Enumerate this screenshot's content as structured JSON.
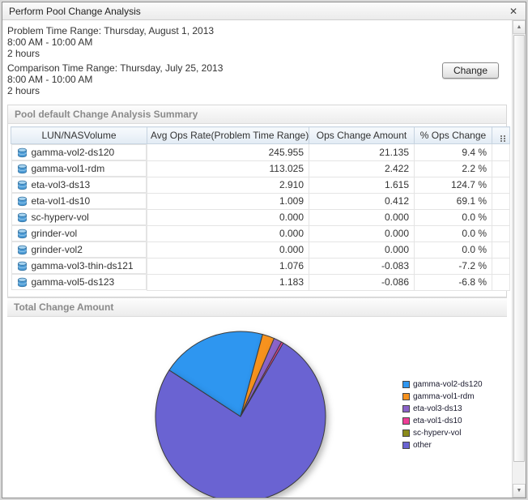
{
  "dialog": {
    "title": "Perform Pool Change Analysis"
  },
  "icons": {
    "close": "✕",
    "scroll_up": "▲",
    "scroll_down": "▼"
  },
  "ranges": {
    "problem": {
      "label": "Problem Time Range:",
      "date": "Thursday, August 1, 2013",
      "time": "8:00 AM - 10:00 AM",
      "duration": "2 hours"
    },
    "comparison": {
      "label": "Comparison Time Range:",
      "date": "Thursday, July 25, 2013",
      "time": "8:00 AM - 10:00 AM",
      "duration": "2 hours"
    }
  },
  "buttons": {
    "change": "Change"
  },
  "summary": {
    "title": "Pool default Change Analysis Summary",
    "columns": [
      "LUN/NASVolume",
      "Avg Ops Rate(Problem Time Range)",
      "Ops Change Amount",
      "% Ops Change"
    ],
    "rows": [
      {
        "name": "gamma-vol2-ds120",
        "avg_ops_rate": "245.955",
        "ops_change_amount": "21.135",
        "pct_ops_change": "9.4 %"
      },
      {
        "name": "gamma-vol1-rdm",
        "avg_ops_rate": "113.025",
        "ops_change_amount": "2.422",
        "pct_ops_change": "2.2 %"
      },
      {
        "name": "eta-vol3-ds13",
        "avg_ops_rate": "2.910",
        "ops_change_amount": "1.615",
        "pct_ops_change": "124.7 %"
      },
      {
        "name": "eta-vol1-ds10",
        "avg_ops_rate": "1.009",
        "ops_change_amount": "0.412",
        "pct_ops_change": "69.1 %"
      },
      {
        "name": "sc-hyperv-vol",
        "avg_ops_rate": "0.000",
        "ops_change_amount": "0.000",
        "pct_ops_change": "0.0 %"
      },
      {
        "name": "grinder-vol",
        "avg_ops_rate": "0.000",
        "ops_change_amount": "0.000",
        "pct_ops_change": "0.0 %"
      },
      {
        "name": "grinder-vol2",
        "avg_ops_rate": "0.000",
        "ops_change_amount": "0.000",
        "pct_ops_change": "0.0 %"
      },
      {
        "name": "gamma-vol3-thin-ds121",
        "avg_ops_rate": "1.076",
        "ops_change_amount": "-0.083",
        "pct_ops_change": "-7.2 %"
      },
      {
        "name": "gamma-vol5-ds123",
        "avg_ops_rate": "1.183",
        "ops_change_amount": "-0.086",
        "pct_ops_change": "-6.8 %"
      }
    ]
  },
  "chart_section": {
    "title": "Total Change Amount"
  },
  "chart_data": {
    "type": "pie",
    "title": "Total Change Amount",
    "legend_position": "right",
    "start_angle_deg": -57,
    "slices": [
      {
        "label": "gamma-vol2-ds120",
        "value": 21.135,
        "color": "#2e96f0"
      },
      {
        "label": "gamma-vol1-rdm",
        "value": 2.422,
        "color": "#f6921e"
      },
      {
        "label": "eta-vol3-ds13",
        "value": 1.615,
        "color": "#8a63c9"
      },
      {
        "label": "eta-vol1-ds10",
        "value": 0.412,
        "color": "#ee3d96"
      },
      {
        "label": "sc-hyperv-vol",
        "value": 0.0,
        "color": "#8b8b1a"
      },
      {
        "label": "other",
        "value": 80.0,
        "color": "#6a63d2",
        "estimated": true
      }
    ]
  }
}
